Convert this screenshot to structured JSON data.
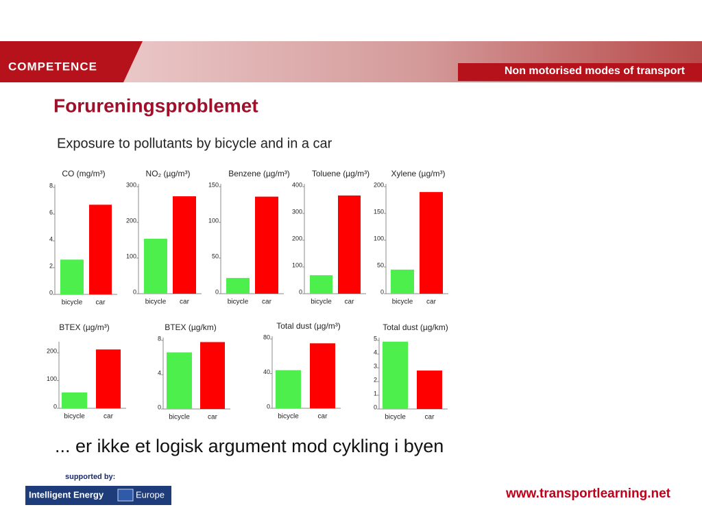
{
  "header": {
    "logo": "COMPETENCE",
    "topic": "Non motorised modes of transport"
  },
  "title": "Forureningsproblemet",
  "subtitle": "Exposure to pollutants by bicycle and in a car",
  "chart_data": [
    {
      "type": "bar",
      "title": "CO (mg/m³)",
      "categories": [
        "bicycle",
        "car"
      ],
      "values": [
        2.6,
        6.7
      ],
      "colors": [
        "#4cef4c",
        "#ff0000"
      ],
      "ylim": [
        0,
        8
      ],
      "yticks": [
        0,
        2,
        4,
        6,
        8
      ]
    },
    {
      "type": "bar",
      "title": "NO₂ (µg/m³)",
      "categories": [
        "bicycle",
        "car"
      ],
      "values": [
        154,
        273
      ],
      "colors": [
        "#4cef4c",
        "#ff0000"
      ],
      "ylim": [
        0,
        300
      ],
      "yticks": [
        0,
        100,
        200,
        300
      ]
    },
    {
      "type": "bar",
      "title": "Benzene (µg/m³)",
      "categories": [
        "bicycle",
        "car"
      ],
      "values": [
        22,
        136
      ],
      "colors": [
        "#4cef4c",
        "#ff0000"
      ],
      "ylim": [
        0,
        150
      ],
      "yticks": [
        0,
        50,
        100,
        150
      ]
    },
    {
      "type": "bar",
      "title": "Toluene (µg/m³)",
      "categories": [
        "bicycle",
        "car"
      ],
      "values": [
        69,
        367
      ],
      "colors": [
        "#4cef4c",
        "#ff0000"
      ],
      "ylim": [
        0,
        400
      ],
      "yticks": [
        0,
        100,
        200,
        300,
        400
      ]
    },
    {
      "type": "bar",
      "title": "Xylene (µg/m³)",
      "categories": [
        "bicycle",
        "car"
      ],
      "values": [
        45,
        190
      ],
      "colors": [
        "#4cef4c",
        "#ff0000"
      ],
      "ylim": [
        0,
        200
      ],
      "yticks": [
        0,
        50,
        100,
        150,
        200
      ]
    },
    {
      "type": "bar",
      "title": "BTEX (µg/m³)",
      "categories": [
        "bicycle",
        "car"
      ],
      "values": [
        57,
        212
      ],
      "colors": [
        "#4cef4c",
        "#ff0000"
      ],
      "ylim": [
        0,
        230
      ],
      "yticks": [
        0,
        100,
        200
      ]
    },
    {
      "type": "bar",
      "title": "BTEX (µg/km)",
      "categories": [
        "bicycle",
        "car"
      ],
      "values": [
        6.6,
        7.8
      ],
      "colors": [
        "#4cef4c",
        "#ff0000"
      ],
      "ylim": [
        0,
        8
      ],
      "yticks": [
        0,
        4,
        8
      ]
    },
    {
      "type": "bar",
      "title": "Total dust (µg/m³)",
      "categories": [
        "bicycle",
        "car"
      ],
      "values": [
        44,
        75
      ],
      "colors": [
        "#4cef4c",
        "#ff0000"
      ],
      "ylim": [
        0,
        80
      ],
      "yticks": [
        0,
        40,
        80
      ]
    },
    {
      "type": "bar",
      "title": "Total dust (µg/km)",
      "categories": [
        "bicycle",
        "car"
      ],
      "values": [
        4.9,
        2.8
      ],
      "colors": [
        "#4cef4c",
        "#ff0000"
      ],
      "ylim": [
        0,
        5
      ],
      "yticks": [
        0,
        1,
        2,
        3,
        4,
        5
      ]
    }
  ],
  "statement": "... er ikke et logisk argument mod cykling i byen",
  "footer": {
    "supported_by": "supported by:",
    "sponsor_left": "Intelligent Energy",
    "sponsor_right": "Europe",
    "url": "www.transportlearning.net"
  }
}
